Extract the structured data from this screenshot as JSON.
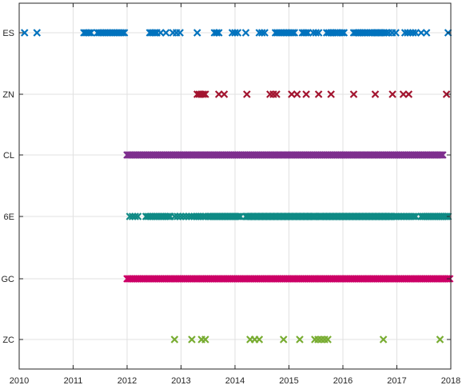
{
  "chart_data": {
    "type": "scatter",
    "marker": "x",
    "grid": true,
    "legend": "none",
    "xlim": [
      2010,
      2018
    ],
    "xticks": [
      "2010",
      "2011",
      "2012",
      "2013",
      "2014",
      "2015",
      "2016",
      "2017",
      "2018"
    ],
    "ycategories": [
      "ES",
      "ZN",
      "CL",
      "6E",
      "GC",
      "ZC"
    ],
    "series": [
      {
        "category": "ES",
        "color": "#0072bd",
        "points": [
          {
            "start": 2010.1,
            "end": 2010.1,
            "count": 1
          },
          {
            "start": 2010.33,
            "end": 2010.33,
            "count": 1
          },
          {
            "start": 2011.2,
            "end": 2011.33,
            "count": 5
          },
          {
            "start": 2011.45,
            "end": 2011.95,
            "count": 16
          },
          {
            "start": 2012.42,
            "end": 2012.55,
            "count": 5
          },
          {
            "start": 2012.62,
            "end": 2012.72,
            "count": 2
          },
          {
            "start": 2012.85,
            "end": 2012.98,
            "count": 3
          },
          {
            "start": 2013.3,
            "end": 2013.3,
            "count": 1
          },
          {
            "start": 2013.62,
            "end": 2013.7,
            "count": 3
          },
          {
            "start": 2013.95,
            "end": 2014.05,
            "count": 3
          },
          {
            "start": 2014.2,
            "end": 2014.2,
            "count": 1
          },
          {
            "start": 2014.45,
            "end": 2014.55,
            "count": 3
          },
          {
            "start": 2014.75,
            "end": 2015.1,
            "count": 12
          },
          {
            "start": 2015.25,
            "end": 2015.35,
            "count": 4
          },
          {
            "start": 2015.45,
            "end": 2015.55,
            "count": 3
          },
          {
            "start": 2015.7,
            "end": 2015.9,
            "count": 6
          },
          {
            "start": 2015.95,
            "end": 2016.02,
            "count": 3
          },
          {
            "start": 2016.2,
            "end": 2016.45,
            "count": 8
          },
          {
            "start": 2016.5,
            "end": 2016.8,
            "count": 9
          },
          {
            "start": 2016.85,
            "end": 2016.98,
            "count": 3
          },
          {
            "start": 2017.15,
            "end": 2017.35,
            "count": 5
          },
          {
            "start": 2017.45,
            "end": 2017.55,
            "count": 2
          },
          {
            "start": 2017.95,
            "end": 2017.95,
            "count": 1
          }
        ]
      },
      {
        "category": "ZN",
        "color": "#a2142f",
        "points": [
          {
            "start": 2013.3,
            "end": 2013.45,
            "count": 5
          },
          {
            "start": 2013.7,
            "end": 2013.8,
            "count": 2
          },
          {
            "start": 2014.22,
            "end": 2014.22,
            "count": 1
          },
          {
            "start": 2014.65,
            "end": 2014.77,
            "count": 3
          },
          {
            "start": 2015.05,
            "end": 2015.15,
            "count": 2
          },
          {
            "start": 2015.32,
            "end": 2015.32,
            "count": 1
          },
          {
            "start": 2015.55,
            "end": 2015.55,
            "count": 1
          },
          {
            "start": 2015.78,
            "end": 2015.78,
            "count": 1
          },
          {
            "start": 2016.2,
            "end": 2016.2,
            "count": 1
          },
          {
            "start": 2016.6,
            "end": 2016.6,
            "count": 1
          },
          {
            "start": 2016.92,
            "end": 2016.92,
            "count": 1
          },
          {
            "start": 2017.12,
            "end": 2017.22,
            "count": 2
          },
          {
            "start": 2017.92,
            "end": 2017.92,
            "count": 1
          }
        ]
      },
      {
        "category": "CL",
        "color": "#7e2f8e",
        "points": [
          {
            "start": 2012.0,
            "end": 2017.85,
            "count": 240
          }
        ]
      },
      {
        "category": "6E",
        "color": "#0f8a85",
        "points": [
          {
            "start": 2012.05,
            "end": 2012.2,
            "count": 4
          },
          {
            "start": 2012.35,
            "end": 2012.8,
            "count": 14
          },
          {
            "start": 2012.88,
            "end": 2013.15,
            "count": 6
          },
          {
            "start": 2013.2,
            "end": 2013.45,
            "count": 7
          },
          {
            "start": 2013.5,
            "end": 2014.1,
            "count": 22
          },
          {
            "start": 2014.2,
            "end": 2015.5,
            "count": 70
          },
          {
            "start": 2015.55,
            "end": 2016.9,
            "count": 70
          },
          {
            "start": 2016.95,
            "end": 2017.35,
            "count": 14
          },
          {
            "start": 2017.45,
            "end": 2017.95,
            "count": 22
          }
        ]
      },
      {
        "category": "GC",
        "color": "#cc0066",
        "points": [
          {
            "start": 2012.0,
            "end": 2017.98,
            "count": 250
          }
        ]
      },
      {
        "category": "ZC",
        "color": "#77ac30",
        "points": [
          {
            "start": 2012.88,
            "end": 2012.88,
            "count": 1
          },
          {
            "start": 2013.2,
            "end": 2013.2,
            "count": 1
          },
          {
            "start": 2013.38,
            "end": 2013.45,
            "count": 2
          },
          {
            "start": 2014.28,
            "end": 2014.45,
            "count": 3
          },
          {
            "start": 2014.9,
            "end": 2014.9,
            "count": 1
          },
          {
            "start": 2015.2,
            "end": 2015.2,
            "count": 1
          },
          {
            "start": 2015.48,
            "end": 2015.72,
            "count": 5
          },
          {
            "start": 2016.75,
            "end": 2016.75,
            "count": 1
          },
          {
            "start": 2017.8,
            "end": 2017.8,
            "count": 1
          }
        ]
      }
    ]
  }
}
